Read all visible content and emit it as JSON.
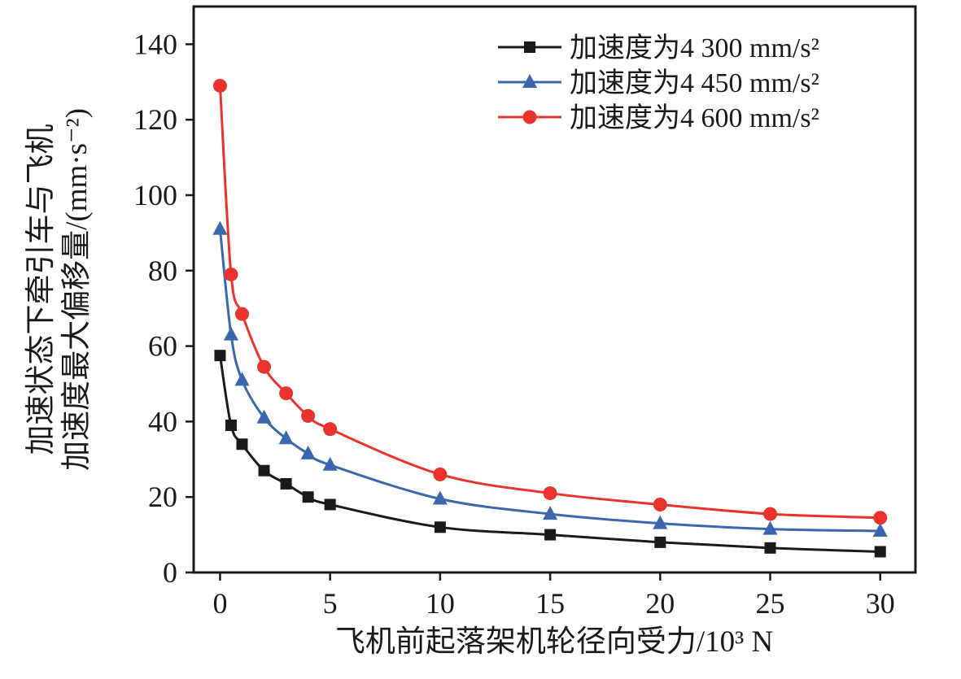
{
  "chart_data": {
    "type": "line",
    "title": "",
    "xlabel": "飞机前起落架机轮径向受力/10³ N",
    "ylabel_line1": "加速状态下牵引车与飞机",
    "ylabel_line2": "加速度最大偏移量/(mm·s⁻²)",
    "x": [
      0,
      0.5,
      1,
      2,
      3,
      4,
      5,
      10,
      15,
      20,
      25,
      30
    ],
    "series": [
      {
        "name": "加速度为4 300 mm/s²",
        "color": "#1a1a1a",
        "marker": "square",
        "values": [
          57.5,
          39,
          34,
          27,
          23.5,
          20,
          18,
          12,
          10,
          8,
          6.5,
          5.5
        ]
      },
      {
        "name": "加速度为4 450 mm/s²",
        "color": "#3a67ae",
        "marker": "triangle",
        "values": [
          91,
          63,
          51,
          41,
          35.5,
          31.5,
          28.5,
          19.5,
          15.5,
          13,
          11.5,
          11
        ]
      },
      {
        "name": "加速度为4 600 mm/s²",
        "color": "#e8342c",
        "marker": "circle",
        "values": [
          129,
          79,
          68.5,
          54.5,
          47.5,
          41.5,
          38,
          26,
          21,
          18,
          15.5,
          14.5
        ]
      }
    ],
    "xticks": [
      0,
      5,
      10,
      15,
      20,
      25,
      30
    ],
    "yticks": [
      0,
      20,
      40,
      60,
      80,
      100,
      120,
      140
    ],
    "xlim": [
      -1.2,
      31.6
    ],
    "ylim": [
      0,
      150
    ],
    "grid": false,
    "legend_position": "top-right-inside",
    "frame_color": "#1a1a1a",
    "background_color": "#ffffff"
  }
}
